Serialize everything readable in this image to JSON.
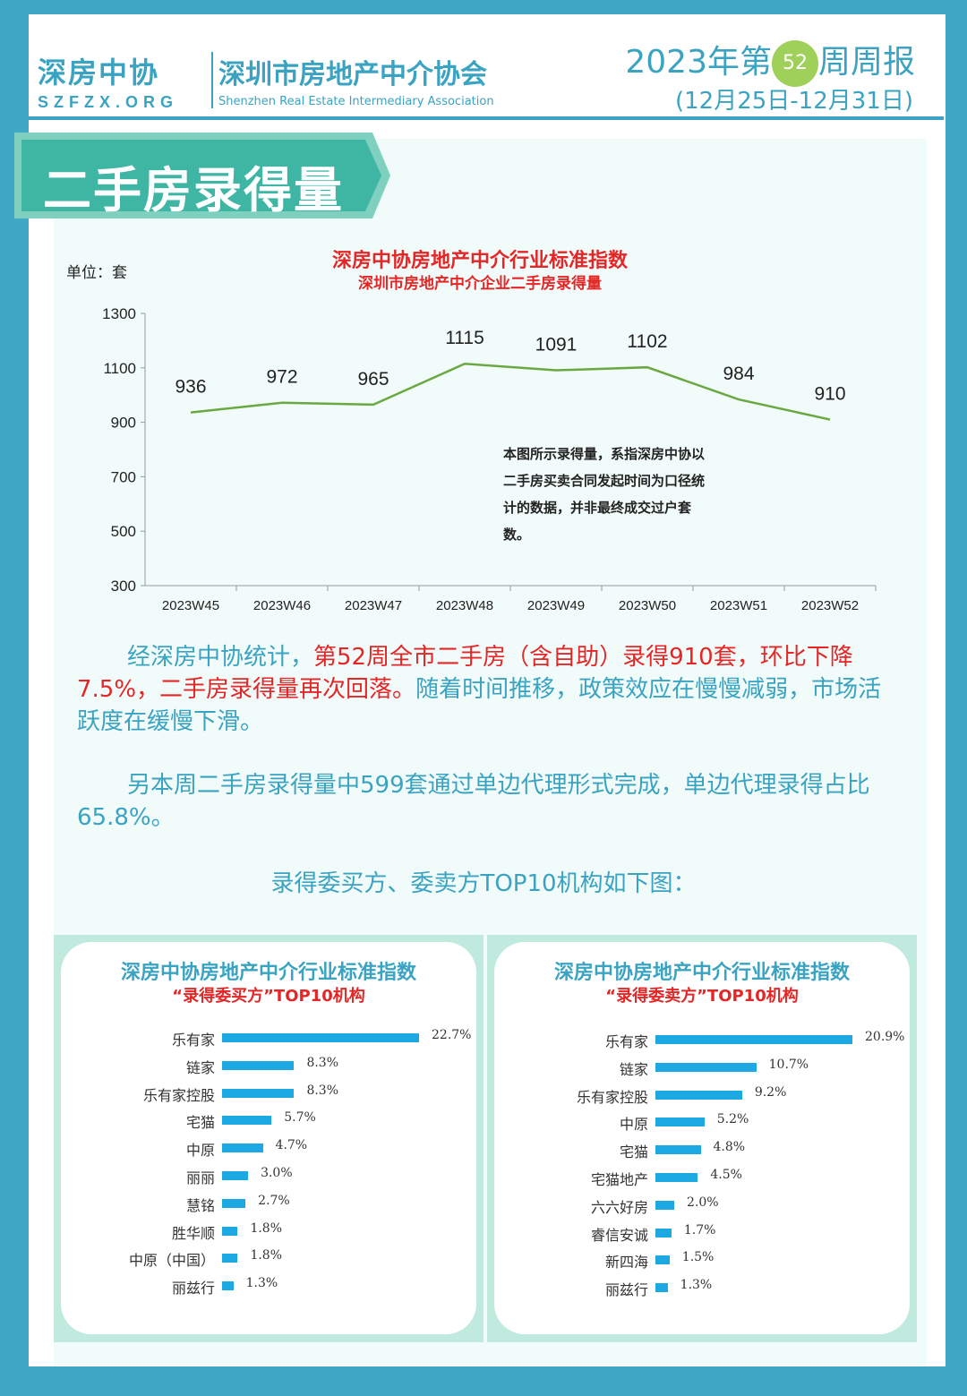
{
  "header": {
    "logo_cn": "深房中协",
    "logo_en": "SZFZX.ORG",
    "assoc_cn": "深圳市房地产中介协会",
    "assoc_en": "Shenzhen Real Estate Intermediary Association",
    "week_prefix": "2023年第",
    "week_no": "52",
    "week_suffix": "周周报",
    "dates": "(12月25日-12月31日)"
  },
  "section": {
    "title": "二手房录得量"
  },
  "text": {
    "p1_a": "经深房中协统计，",
    "p1_b": "第52周全市二手房（含自助）录得910套，环比下降7.5%，二手房录得量再次回落。",
    "p1_c": "随着时间推移，政策效应在慢慢减弱，市场活跃度在缓慢下滑。",
    "p2": "另本周二手房录得量中599套通过单边代理形式完成，单边代理录得占比65.8%。",
    "sub": "录得委买方、委卖方TOP10机构如下图："
  },
  "chart_data": [
    {
      "type": "line",
      "title": "深房中协房地产中介行业标准指数",
      "subtitle": "深圳市房地产中介企业二手房录得量",
      "ylabel": "单位：套",
      "ylim": [
        300,
        1300
      ],
      "yticks": [
        300,
        500,
        700,
        900,
        1100,
        1300
      ],
      "categories": [
        "2023W45",
        "2023W46",
        "2023W47",
        "2023W48",
        "2023W49",
        "2023W50",
        "2023W51",
        "2023W52"
      ],
      "values": [
        936,
        972,
        965,
        1115,
        1091,
        1102,
        984,
        910
      ],
      "note": "本图所示录得量，系指深房中协以二手房买卖合同发起时间为口径统计的数据，并非最终成交过户套数。",
      "color": "#6aa842"
    },
    {
      "type": "bar",
      "title": "深房中协房地产中介行业标准指数",
      "subtitle": "“录得委买方”TOP10机构",
      "categories": [
        "乐有家",
        "链家",
        "乐有家控股",
        "宅猫",
        "中原",
        "丽丽",
        "慧铭",
        "胜华顺",
        "中原（中国）",
        "丽兹行"
      ],
      "values": [
        22.7,
        8.3,
        8.3,
        5.7,
        4.7,
        3.0,
        2.7,
        1.8,
        1.8,
        1.3
      ],
      "labels": [
        "22.7%",
        "8.3%",
        "8.3%",
        "5.7%",
        "4.7%",
        "3.0%",
        "2.7%",
        "1.8%",
        "1.8%",
        "1.3%"
      ],
      "color": "#1ca8e3"
    },
    {
      "type": "bar",
      "title": "深房中协房地产中介行业标准指数",
      "subtitle": "“录得委卖方”TOP10机构",
      "categories": [
        "乐有家",
        "链家",
        "乐有家控股",
        "中原",
        "宅猫",
        "宅猫地产",
        "六六好房",
        "睿信安诚",
        "新四海",
        "丽兹行"
      ],
      "values": [
        20.9,
        10.7,
        9.2,
        5.2,
        4.8,
        4.5,
        2.0,
        1.7,
        1.5,
        1.3
      ],
      "labels": [
        "20.9%",
        "10.7%",
        "9.2%",
        "5.2%",
        "4.8%",
        "4.5%",
        "2.0%",
        "1.7%",
        "1.5%",
        "1.3%"
      ],
      "color": "#1ca8e3"
    }
  ]
}
